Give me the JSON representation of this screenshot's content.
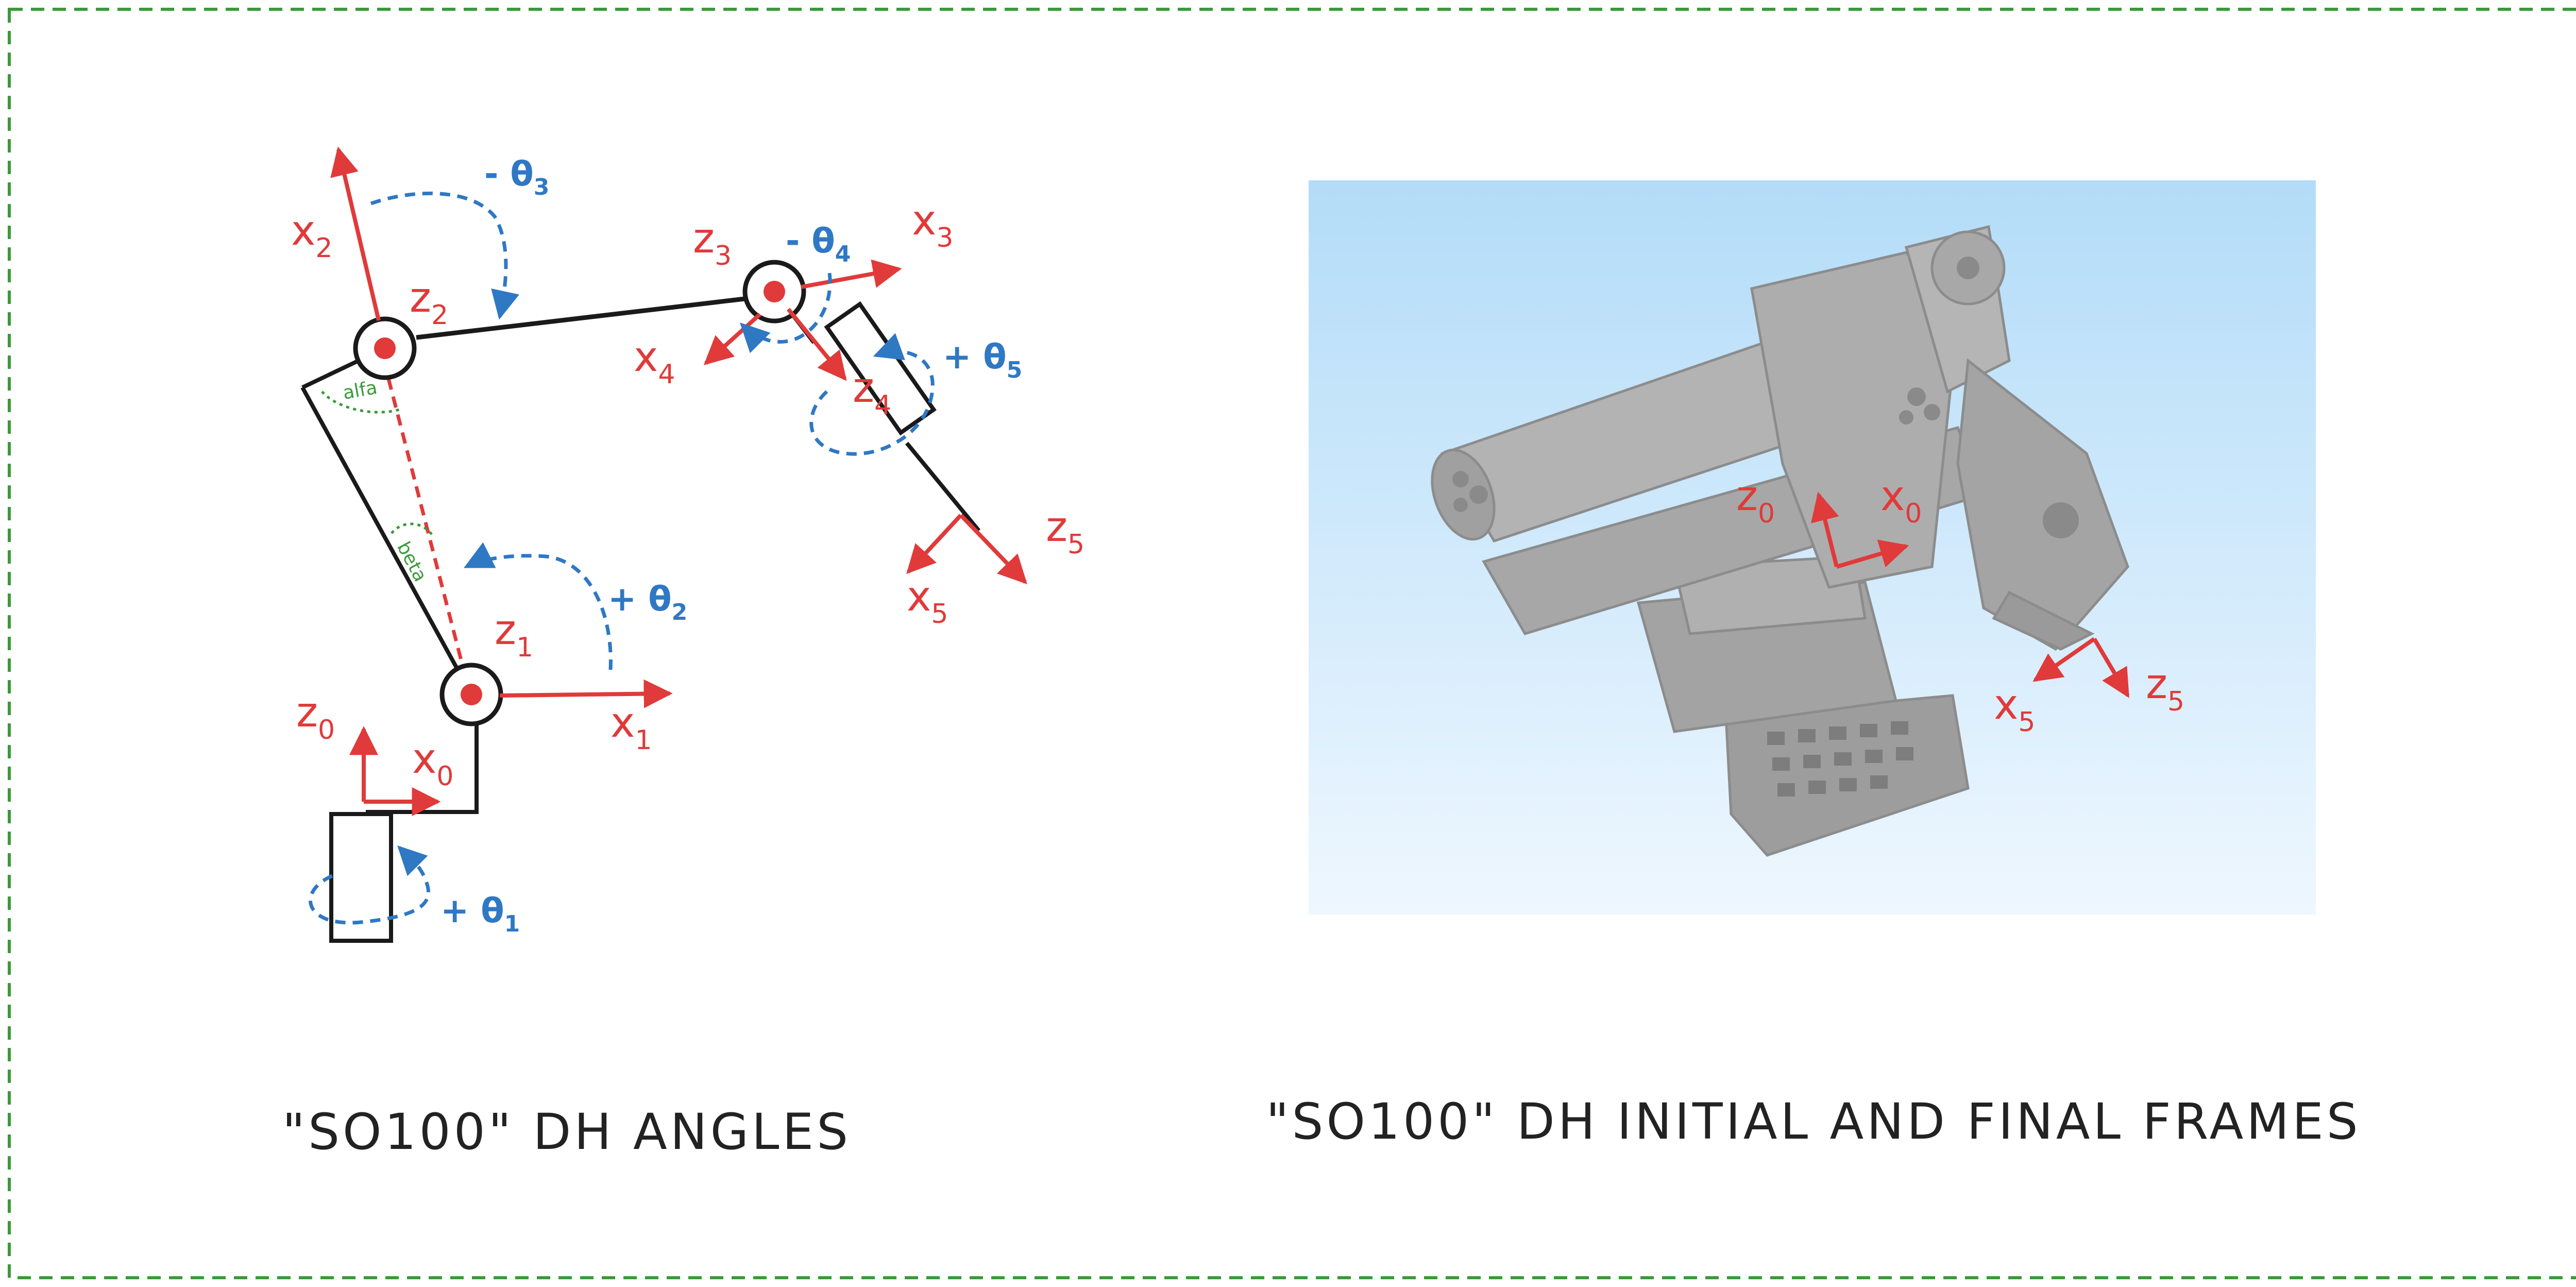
{
  "colors": {
    "frame": "#e03a3a",
    "angle": "#2f78c4",
    "link": "#1a1a1a",
    "aux": "#3a9a3a",
    "border": "#3a9a3a",
    "panel_top": "#b3dcf8",
    "panel_bottom": "#eef7ff",
    "robot": "#a9a9a9"
  },
  "left_diagram": {
    "caption": "\"SO100\" DH ANGLES",
    "frames": {
      "x0": "x",
      "x0_sub": "0",
      "z0": "z",
      "z0_sub": "0",
      "x1": "x",
      "x1_sub": "1",
      "z1": "z",
      "z1_sub": "1",
      "x2": "x",
      "x2_sub": "2",
      "z2": "z",
      "z2_sub": "2",
      "x3": "x",
      "x3_sub": "3",
      "z3": "z",
      "z3_sub": "3",
      "x4": "x",
      "x4_sub": "4",
      "z4": "z",
      "z4_sub": "4",
      "x5": "x",
      "x5_sub": "5",
      "z5": "z",
      "z5_sub": "5"
    },
    "angles": {
      "theta1": "+ θ",
      "theta1_sub": "1",
      "theta2": "+ θ",
      "theta2_sub": "2",
      "theta3": "- θ",
      "theta3_sub": "3",
      "theta4": "- θ",
      "theta4_sub": "4",
      "theta5": "+ θ",
      "theta5_sub": "5"
    },
    "aux_angles": {
      "alfa": "alfa",
      "beta": "beta"
    }
  },
  "right_diagram": {
    "caption": "\"SO100\" DH INITIAL AND FINAL FRAMES",
    "frames": {
      "z0": "z",
      "z0_sub": "0",
      "x0": "x",
      "x0_sub": "0",
      "z5": "z",
      "z5_sub": "5",
      "x5": "x",
      "x5_sub": "5"
    }
  }
}
